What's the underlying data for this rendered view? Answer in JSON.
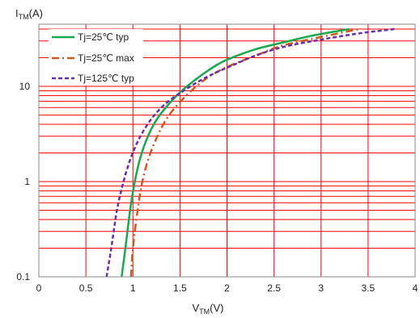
{
  "chart_data": {
    "type": "line",
    "y_scale": "log",
    "grid": true,
    "grid_color": "#ff0000",
    "legend_position": "top-left",
    "xlabel": {
      "main": "V",
      "sub": "TM",
      "unit": "(V)"
    },
    "ylabel": {
      "main": "I",
      "sub": "TM",
      "unit": "(A)"
    },
    "xlim": [
      0,
      4
    ],
    "ylim": [
      0.1,
      45
    ],
    "x_ticks": [
      0,
      0.5,
      1,
      1.5,
      2,
      2.5,
      3,
      3.5,
      4
    ],
    "x_tick_labels": [
      "0",
      "0.5",
      "1",
      "1.5",
      "2",
      "2.5",
      "3",
      "3.5",
      "4"
    ],
    "y_ticks": [
      0.1,
      1,
      10
    ],
    "y_tick_labels": [
      "0.1",
      "1",
      "10"
    ],
    "series": [
      {
        "name": "Tj=25℃ typ",
        "color": "#1aa84f",
        "dash": "solid",
        "x": [
          0.88,
          0.92,
          0.97,
          1.02,
          1.08,
          1.16,
          1.26,
          1.38,
          1.52,
          1.7,
          1.9,
          2.05,
          2.3,
          2.6,
          2.9,
          3.3
        ],
        "y": [
          0.1,
          0.2,
          0.5,
          1.0,
          1.8,
          3.0,
          4.6,
          6.5,
          9.0,
          12.5,
          17.0,
          20.0,
          24.5,
          29.0,
          34.0,
          40.0
        ]
      },
      {
        "name": "Tj=25℃ max",
        "color": "#cc5a1a",
        "dash": "dashdot",
        "x": [
          0.98,
          1.0,
          1.05,
          1.1,
          1.17,
          1.26,
          1.36,
          1.48,
          1.62,
          1.8,
          2.0,
          2.3,
          2.6,
          3.0,
          3.4
        ],
        "y": [
          0.1,
          0.2,
          0.5,
          1.0,
          1.8,
          3.0,
          4.6,
          6.5,
          9.0,
          12.5,
          16.0,
          21.0,
          27.0,
          33.0,
          40.0
        ]
      },
      {
        "name": "Tj=125℃ typ",
        "color": "#6a2fa8",
        "dash": "dashed",
        "x": [
          0.72,
          0.77,
          0.83,
          0.9,
          0.98,
          1.08,
          1.2,
          1.34,
          1.5,
          1.68,
          1.85,
          2.05,
          2.3,
          2.6,
          3.0,
          3.4,
          3.78
        ],
        "y": [
          0.1,
          0.2,
          0.5,
          1.0,
          1.8,
          3.0,
          4.6,
          6.5,
          8.5,
          11.0,
          13.5,
          16.5,
          21.0,
          26.0,
          31.0,
          36.0,
          40.0
        ]
      }
    ]
  }
}
